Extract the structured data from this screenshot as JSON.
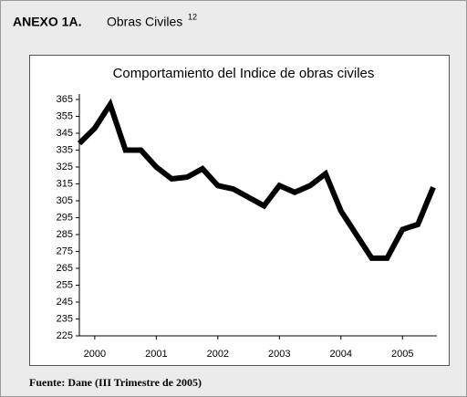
{
  "header": {
    "label": "ANEXO 1A.",
    "title": "Obras Civiles",
    "note": "12"
  },
  "footer": "Fuente: Dane (III Trimestre de 2005)",
  "chart_data": {
    "type": "line",
    "title": "Comportamiento del Indice de obras civiles",
    "x": [
      1999.75,
      2000,
      2000.25,
      2000.5,
      2000.75,
      2001,
      2001.25,
      2001.5,
      2001.75,
      2002,
      2002.25,
      2002.5,
      2002.75,
      2003,
      2003.25,
      2003.5,
      2003.75,
      2004,
      2004.25,
      2004.5,
      2004.75,
      2005,
      2005.25,
      2005.5
    ],
    "series": [
      {
        "name": "Indice de obras civiles",
        "color": "#000000",
        "values": [
          339,
          348,
          362,
          335,
          335,
          325,
          318,
          319,
          324,
          314,
          312,
          307,
          302,
          314,
          310,
          314,
          321,
          299,
          285,
          271,
          271,
          288,
          291,
          313
        ]
      }
    ],
    "xlim": [
      1999.75,
      2005.5
    ],
    "xticks": [
      2000,
      2001,
      2002,
      2003,
      2004,
      2005
    ],
    "ylim": [
      225,
      365
    ],
    "yticks": [
      225,
      235,
      245,
      255,
      265,
      275,
      285,
      295,
      305,
      315,
      325,
      335,
      345,
      355,
      365
    ],
    "legend": false,
    "grid": false
  }
}
